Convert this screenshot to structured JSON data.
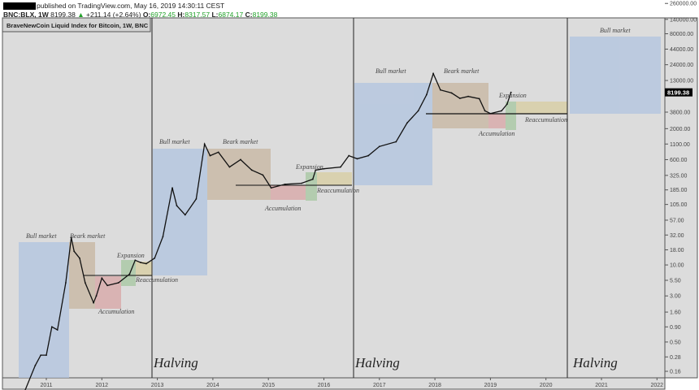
{
  "header": {
    "published": "published on TradingView.com, May 16, 2019 14:30:11 CEST",
    "symbol": "BNC:BLX, 1W",
    "last": "8199.38",
    "change": "+211.14 (+2.64%)",
    "open_label": "O:",
    "open": "6972.45",
    "high_label": "H:",
    "high": "8317.57",
    "low_label": "L:",
    "low": "6874.17",
    "close_label": "C:",
    "close": "8199.38"
  },
  "chart_title": "BraveNewCoin Liquid Index for Bitcoin, 1W, BNC",
  "colors": {
    "up": "#22a22a",
    "bull": "#b4c6e0",
    "bear": "#c9b8a4",
    "accum": "#d9a9a9",
    "expansion": "#a9c9a4",
    "reaccum": "#d9cfa4"
  },
  "chart_data": {
    "type": "line",
    "title": "BraveNewCoin Liquid Index for Bitcoin, 1W, BNC",
    "yscale": "log",
    "ylim": [
      0.1,
      300000
    ],
    "xlim": [
      2010.2,
      2022.2
    ],
    "x_ticks": [
      "2011",
      "2012",
      "2013",
      "2014",
      "2015",
      "2016",
      "2017",
      "2018",
      "2019",
      "2020",
      "2021",
      "2022"
    ],
    "y_ticks": [
      "260000.00",
      "140000.00",
      "80000.00",
      "44000.00",
      "24000.00",
      "13000.00",
      "3800.00",
      "2000.00",
      "1100.00",
      "600.00",
      "325.00",
      "185.00",
      "105.00",
      "57.00",
      "32.00",
      "18.00",
      "10.00",
      "5.50",
      "3.00",
      "1.60",
      "0.90",
      "0.50",
      "0.28",
      "0.16"
    ],
    "y_tick_values": [
      260000,
      140000,
      80000,
      44000,
      24000,
      13000,
      3800,
      2000,
      1100,
      600,
      325,
      185,
      105,
      57,
      32,
      18,
      10,
      5.5,
      3,
      1.6,
      0.9,
      0.5,
      0.28,
      0.16
    ],
    "last_price_label": "8199.38",
    "series": [
      {
        "name": "BLX",
        "points": [
          [
            2010.6,
            0.07
          ],
          [
            2010.8,
            0.2
          ],
          [
            2010.9,
            0.3
          ],
          [
            2011.0,
            0.3
          ],
          [
            2011.1,
            0.9
          ],
          [
            2011.2,
            0.8
          ],
          [
            2011.35,
            5
          ],
          [
            2011.45,
            29
          ],
          [
            2011.5,
            17
          ],
          [
            2011.6,
            13
          ],
          [
            2011.7,
            5
          ],
          [
            2011.85,
            2.3
          ],
          [
            2011.9,
            3
          ],
          [
            2012.0,
            6
          ],
          [
            2012.1,
            4.5
          ],
          [
            2012.3,
            5
          ],
          [
            2012.5,
            7
          ],
          [
            2012.6,
            12
          ],
          [
            2012.7,
            11
          ],
          [
            2012.8,
            10.5
          ],
          [
            2012.95,
            13
          ],
          [
            2013.1,
            30
          ],
          [
            2013.27,
            200
          ],
          [
            2013.35,
            100
          ],
          [
            2013.5,
            70
          ],
          [
            2013.7,
            130
          ],
          [
            2013.85,
            1100
          ],
          [
            2013.95,
            700
          ],
          [
            2014.1,
            800
          ],
          [
            2014.3,
            450
          ],
          [
            2014.5,
            600
          ],
          [
            2014.7,
            400
          ],
          [
            2014.9,
            330
          ],
          [
            2015.05,
            200
          ],
          [
            2015.3,
            230
          ],
          [
            2015.6,
            240
          ],
          [
            2015.8,
            280
          ],
          [
            2015.85,
            400
          ],
          [
            2016.0,
            420
          ],
          [
            2016.3,
            450
          ],
          [
            2016.45,
            700
          ],
          [
            2016.6,
            620
          ],
          [
            2016.8,
            700
          ],
          [
            2017.0,
            1000
          ],
          [
            2017.3,
            1200
          ],
          [
            2017.5,
            2500
          ],
          [
            2017.7,
            4000
          ],
          [
            2017.85,
            7500
          ],
          [
            2017.97,
            17000
          ],
          [
            2018.1,
            9000
          ],
          [
            2018.3,
            8000
          ],
          [
            2018.45,
            6500
          ],
          [
            2018.6,
            7000
          ],
          [
            2018.8,
            6400
          ],
          [
            2018.9,
            4000
          ],
          [
            2019.0,
            3600
          ],
          [
            2019.2,
            4000
          ],
          [
            2019.3,
            5200
          ],
          [
            2019.37,
            8199.38
          ]
        ]
      }
    ],
    "annotations": {
      "bull": "Bull market",
      "bear": "Beark market",
      "accumulation": "Accumulation",
      "expansion": "Expansion",
      "reaccumulation": "Reaccumulation",
      "halving": "Halving"
    }
  }
}
